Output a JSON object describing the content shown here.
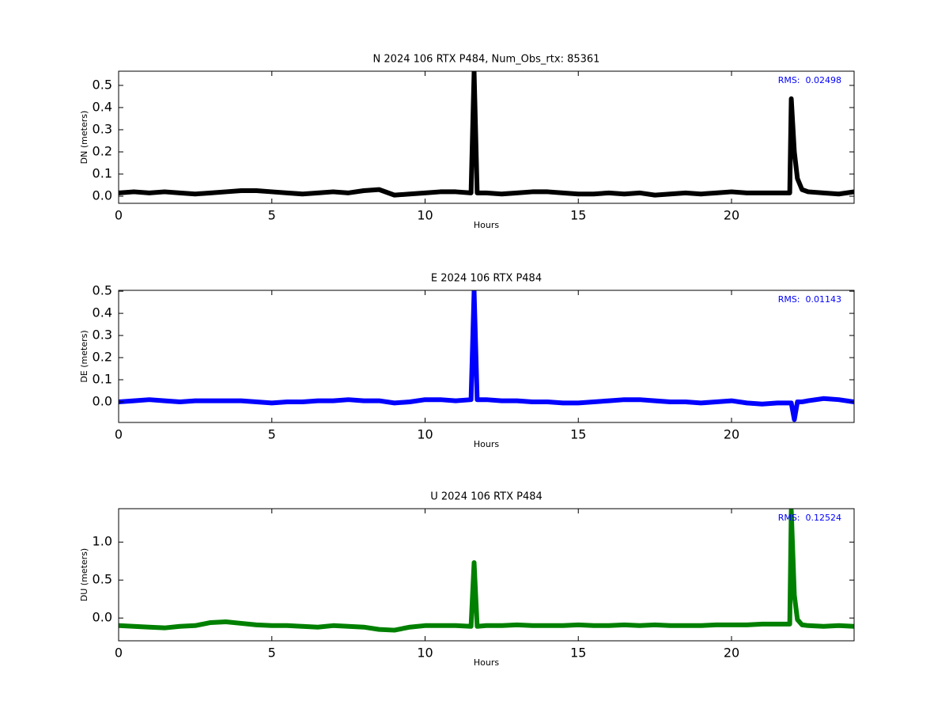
{
  "chart_data": [
    {
      "type": "line",
      "title": "N 2024 106 RTX  P484, Num_Obs_rtx: 85361",
      "x_label": "Hours",
      "y_label": "DN (meters)",
      "annotation": "RMS:  0.02498",
      "annotation_color": "#0000ff",
      "x": [
        0,
        0.5,
        1,
        1.5,
        2,
        2.5,
        3,
        3.5,
        4,
        4.5,
        5,
        5.5,
        6,
        6.5,
        7,
        7.5,
        8,
        8.5,
        9,
        9.5,
        10,
        10.5,
        11,
        11.5,
        11.6,
        11.7,
        12,
        12.5,
        13,
        13.5,
        14,
        14.5,
        15,
        15.5,
        16,
        16.5,
        17,
        17.5,
        18,
        18.5,
        19,
        19.5,
        20,
        20.5,
        21,
        21.5,
        21.9,
        21.95,
        22.05,
        22.15,
        22.3,
        22.5,
        23,
        23.5,
        24
      ],
      "series": [
        {
          "color": "#000000",
          "values": [
            0.015,
            0.02,
            0.015,
            0.02,
            0.015,
            0.01,
            0.015,
            0.02,
            0.025,
            0.025,
            0.02,
            0.015,
            0.01,
            0.015,
            0.02,
            0.015,
            0.025,
            0.03,
            0.005,
            0.01,
            0.015,
            0.02,
            0.02,
            0.015,
            0.56,
            0.015,
            0.015,
            0.01,
            0.015,
            0.02,
            0.02,
            0.015,
            0.01,
            0.01,
            0.015,
            0.01,
            0.015,
            0.005,
            0.01,
            0.015,
            0.01,
            0.015,
            0.02,
            0.015,
            0.015,
            0.015,
            0.015,
            0.44,
            0.2,
            0.08,
            0.03,
            0.02,
            0.015,
            0.01,
            0.02
          ]
        }
      ],
      "xlim": [
        0,
        24
      ],
      "xticks": [
        0,
        5,
        10,
        15,
        20
      ],
      "ylim": [
        -0.032,
        0.564
      ],
      "yticks": [
        {
          "value": 0,
          "label": "0.0"
        },
        0.1,
        0.2,
        0.3,
        0.4,
        0.5
      ]
    },
    {
      "type": "line",
      "title": "E 2024 106 RTX  P484",
      "x_label": "Hours",
      "y_label": "DE (meters)",
      "annotation": "RMS:  0.01143",
      "annotation_color": "#0000ff",
      "x": [
        0,
        0.5,
        1,
        1.5,
        2,
        2.5,
        3,
        3.5,
        4,
        4.5,
        5,
        5.5,
        6,
        6.5,
        7,
        7.5,
        8,
        8.5,
        9,
        9.5,
        10,
        10.5,
        11,
        11.5,
        11.6,
        11.7,
        12,
        12.5,
        13,
        13.5,
        14,
        14.5,
        15,
        15.5,
        16,
        16.5,
        17,
        17.5,
        18,
        18.5,
        19,
        19.5,
        20,
        20.5,
        21,
        21.5,
        21.9,
        21.95,
        22.05,
        22.15,
        22.3,
        22.5,
        23,
        23.5,
        24
      ],
      "series": [
        {
          "color": "#0000ff",
          "values": [
            0,
            0.005,
            0.01,
            0.005,
            0,
            0.005,
            0.005,
            0.005,
            0.005,
            0,
            -0.005,
            0,
            0,
            0.005,
            0.005,
            0.01,
            0.005,
            0.005,
            -0.005,
            0,
            0.01,
            0.01,
            0.005,
            0.01,
            0.5,
            0.01,
            0.01,
            0.005,
            0.005,
            0,
            0,
            -0.005,
            -0.005,
            0,
            0.005,
            0.01,
            0.01,
            0.005,
            0,
            0,
            -0.005,
            0,
            0.005,
            -0.005,
            -0.01,
            -0.005,
            -0.005,
            -0.005,
            -0.08,
            0,
            0,
            0.005,
            0.015,
            0.01,
            0
          ]
        }
      ],
      "xlim": [
        0,
        24
      ],
      "xticks": [
        0,
        5,
        10,
        15,
        20
      ],
      "ylim": [
        -0.093,
        0.504
      ],
      "yticks": [
        {
          "value": 0,
          "label": "0.0"
        },
        0.1,
        0.2,
        0.3,
        0.4,
        0.5
      ]
    },
    {
      "type": "line",
      "title": "U 2024 106 RTX  P484",
      "x_label": "Hours",
      "y_label": "DU (meters)",
      "annotation": "RMS:  0.12524",
      "annotation_color": "#0000ff",
      "x": [
        0,
        0.5,
        1,
        1.5,
        2,
        2.5,
        3,
        3.5,
        4,
        4.5,
        5,
        5.5,
        6,
        6.5,
        7,
        7.5,
        8,
        8.5,
        9,
        9.5,
        10,
        10.5,
        11,
        11.5,
        11.6,
        11.7,
        12,
        12.5,
        13,
        13.5,
        14,
        14.5,
        15,
        15.5,
        16,
        16.5,
        17,
        17.5,
        18,
        18.5,
        19,
        19.5,
        20,
        20.5,
        21,
        21.5,
        21.9,
        21.95,
        22.05,
        22.15,
        22.3,
        22.5,
        23,
        23.5,
        24
      ],
      "series": [
        {
          "color": "#008000",
          "values": [
            -0.1,
            -0.11,
            -0.12,
            -0.13,
            -0.11,
            -0.1,
            -0.06,
            -0.05,
            -0.07,
            -0.09,
            -0.1,
            -0.1,
            -0.11,
            -0.12,
            -0.1,
            -0.11,
            -0.12,
            -0.15,
            -0.16,
            -0.12,
            -0.1,
            -0.1,
            -0.1,
            -0.11,
            0.73,
            -0.11,
            -0.1,
            -0.1,
            -0.09,
            -0.1,
            -0.1,
            -0.1,
            -0.09,
            -0.1,
            -0.1,
            -0.09,
            -0.1,
            -0.09,
            -0.1,
            -0.1,
            -0.1,
            -0.09,
            -0.09,
            -0.09,
            -0.08,
            -0.08,
            -0.08,
            1.42,
            0.3,
            -0.02,
            -0.09,
            -0.1,
            -0.11,
            -0.1,
            -0.11
          ]
        }
      ],
      "xlim": [
        0,
        24
      ],
      "xticks": [
        0,
        5,
        10,
        15,
        20
      ],
      "ylim": [
        -0.3,
        1.44
      ],
      "yticks": [
        {
          "value": 0,
          "label": "0.0"
        },
        0.5,
        {
          "value": 1,
          "label": "1.0"
        }
      ]
    }
  ]
}
